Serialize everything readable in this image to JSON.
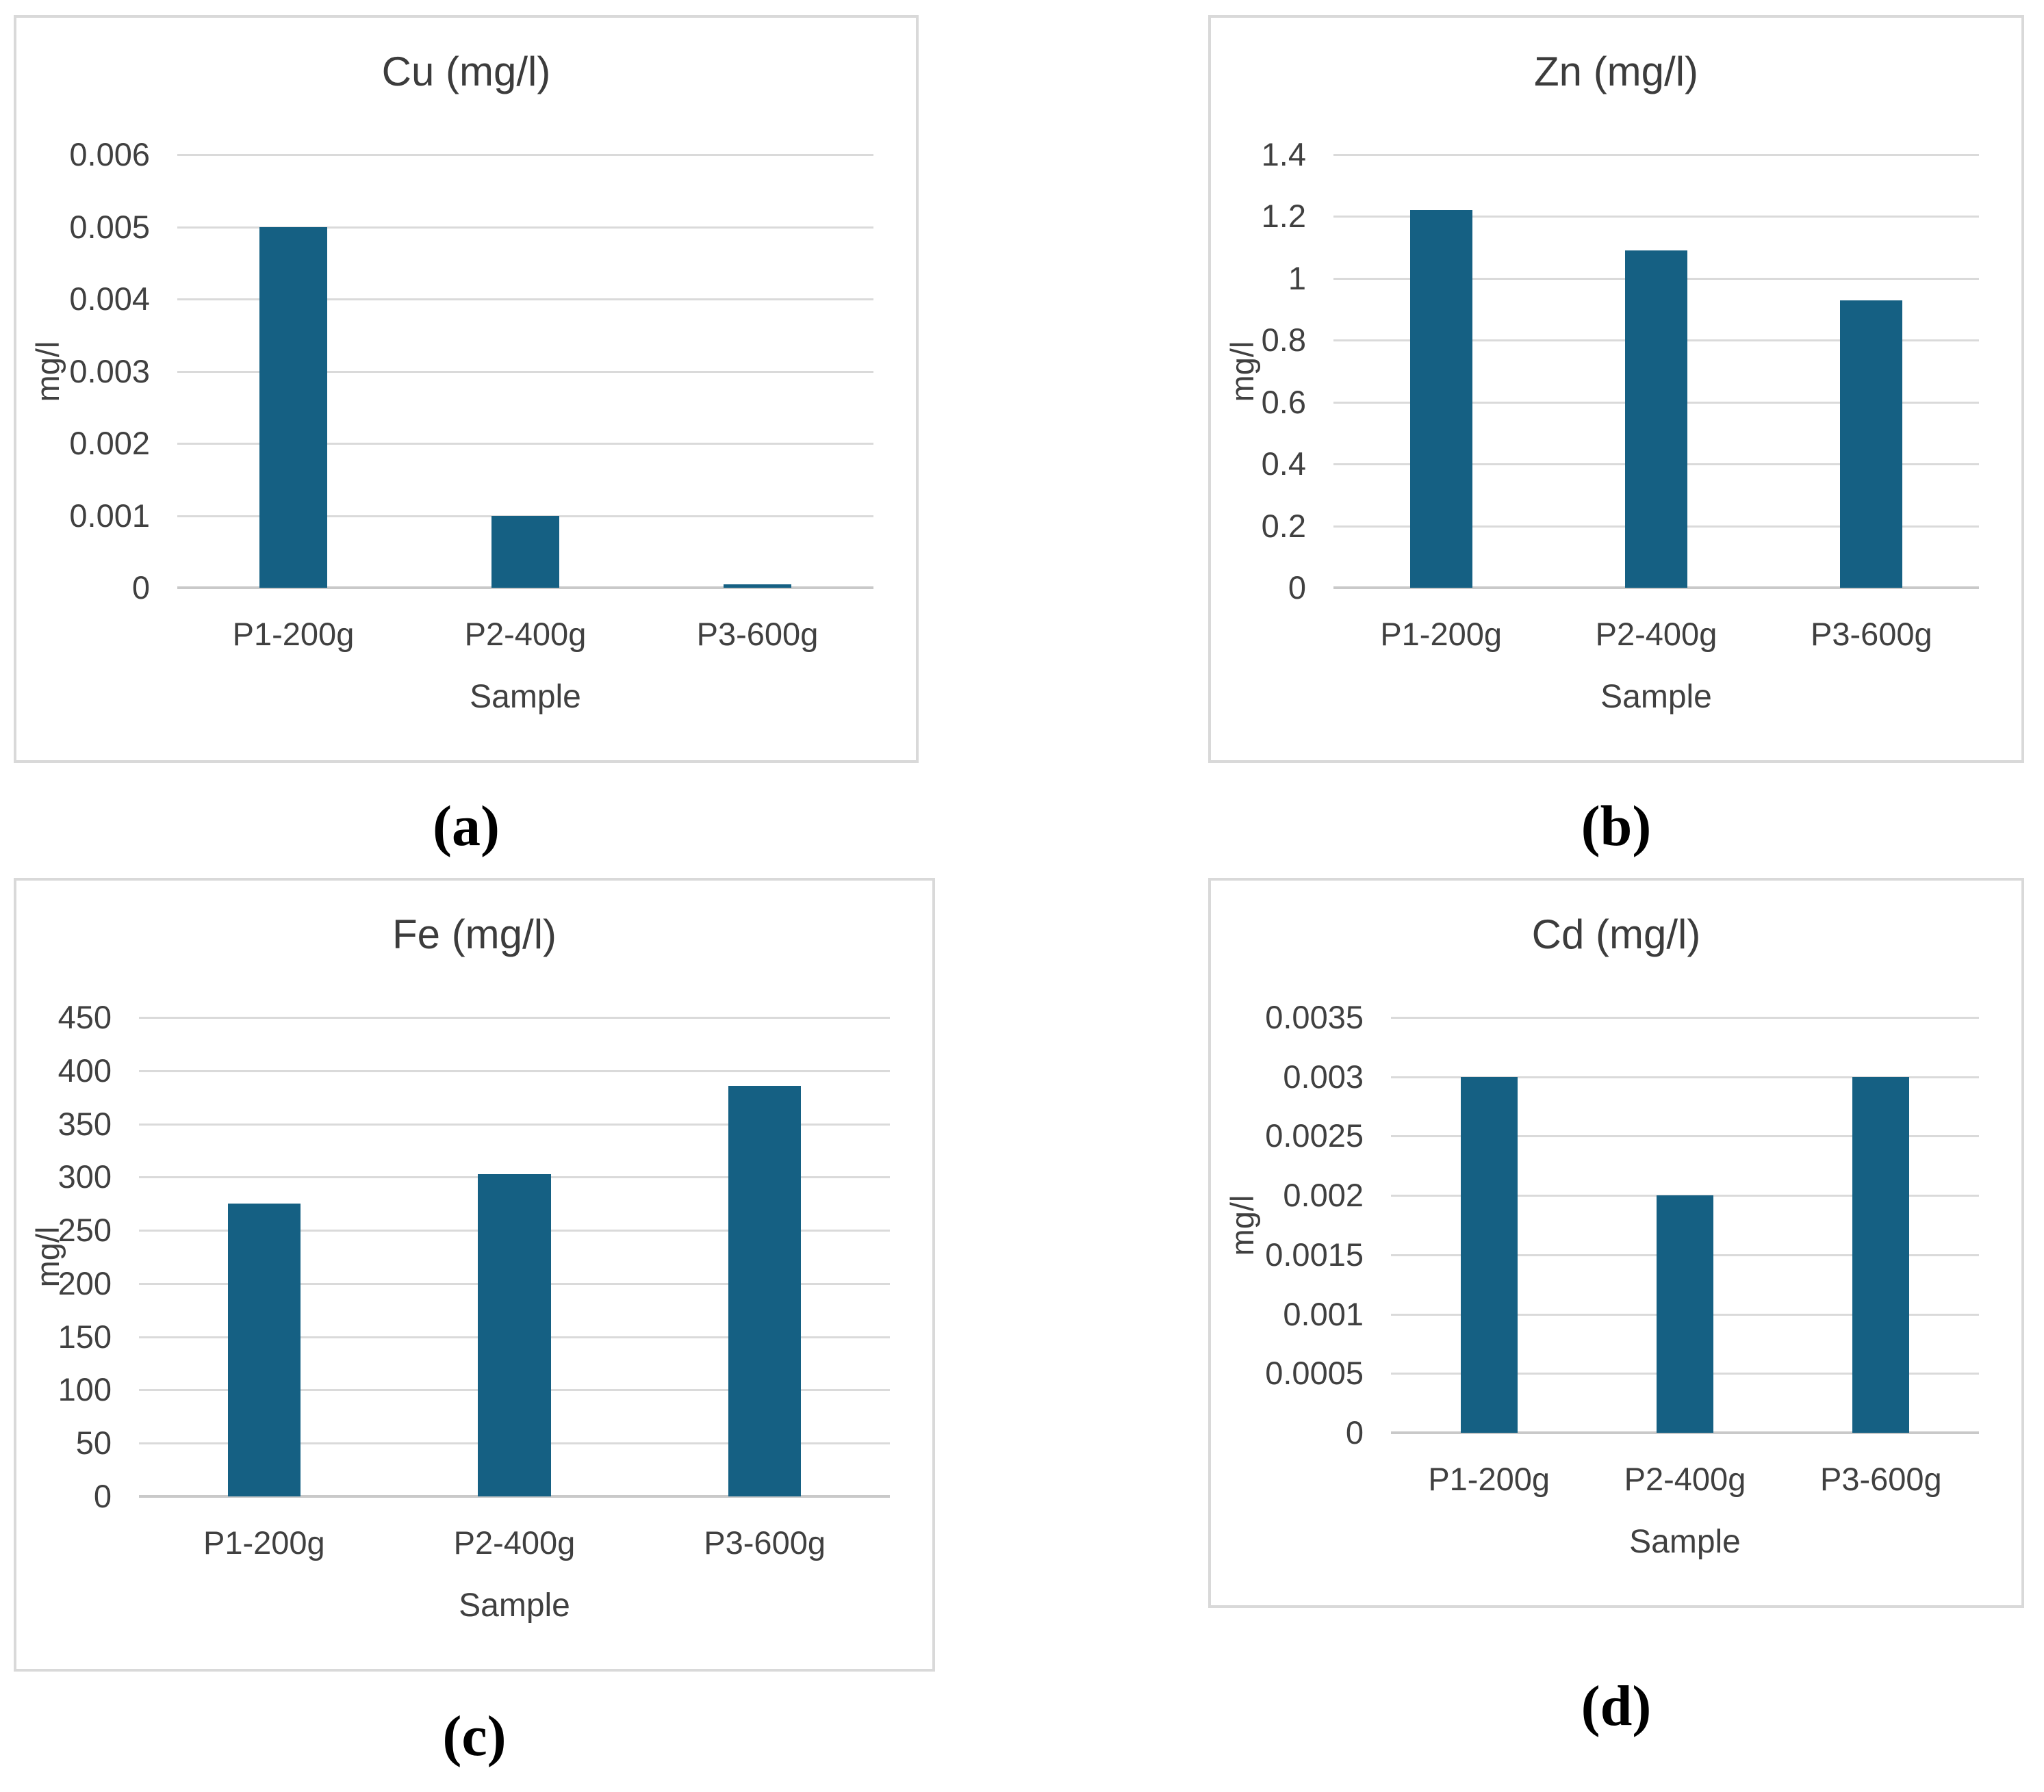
{
  "figure": {
    "captions": [
      "(a)",
      "(b)",
      "(c)",
      "(d)"
    ]
  },
  "colors": {
    "bar": "#156083",
    "gridline": "#DADADA",
    "axis_line": "#C9C9C9",
    "panel_border": "#D9D9D9",
    "title_text": "#3C3C3C",
    "label_text": "#404040",
    "caption_text": "#000000",
    "background": "#FFFFFF"
  },
  "chart_data": [
    {
      "type": "bar",
      "title": "Cu (mg/l)",
      "xlabel": "Sample",
      "ylabel": "mg/l",
      "categories": [
        "P1-200g",
        "P2-400g",
        "P3-600g"
      ],
      "values": [
        0.005,
        0.001,
        5e-05
      ],
      "ylim": [
        0,
        0.006
      ],
      "ytick_step": 0.001,
      "ytick_labels": [
        "0",
        "0.001",
        "0.002",
        "0.003",
        "0.004",
        "0.005",
        "0.006"
      ],
      "grid": true,
      "legend": false
    },
    {
      "type": "bar",
      "title": "Zn (mg/l)",
      "xlabel": "Sample",
      "ylabel": "mg/l",
      "categories": [
        "P1-200g",
        "P2-400g",
        "P3-600g"
      ],
      "values": [
        1.22,
        1.09,
        0.93
      ],
      "ylim": [
        0,
        1.4
      ],
      "ytick_step": 0.2,
      "ytick_labels": [
        "0",
        "0.2",
        "0.4",
        "0.6",
        "0.8",
        "1",
        "1.2",
        "1.4"
      ],
      "grid": true,
      "legend": false
    },
    {
      "type": "bar",
      "title": "Fe (mg/l)",
      "xlabel": "Sample",
      "ylabel": "mg/l",
      "categories": [
        "P1-200g",
        "P2-400g",
        "P3-600g"
      ],
      "values": [
        275,
        303,
        386
      ],
      "ylim": [
        0,
        450
      ],
      "ytick_step": 50,
      "ytick_labels": [
        "0",
        "50",
        "100",
        "150",
        "200",
        "250",
        "300",
        "350",
        "400",
        "450"
      ],
      "grid": true,
      "legend": false
    },
    {
      "type": "bar",
      "title": "Cd (mg/l)",
      "xlabel": "Sample",
      "ylabel": "mg/l",
      "categories": [
        "P1-200g",
        "P2-400g",
        "P3-600g"
      ],
      "values": [
        0.003,
        0.002,
        0.003
      ],
      "ylim": [
        0,
        0.0035
      ],
      "ytick_step": 0.0005,
      "ytick_labels": [
        "0",
        "0.0005",
        "0.001",
        "0.0015",
        "0.002",
        "0.0025",
        "0.003",
        "0.0035"
      ],
      "grid": true,
      "legend": false
    }
  ]
}
